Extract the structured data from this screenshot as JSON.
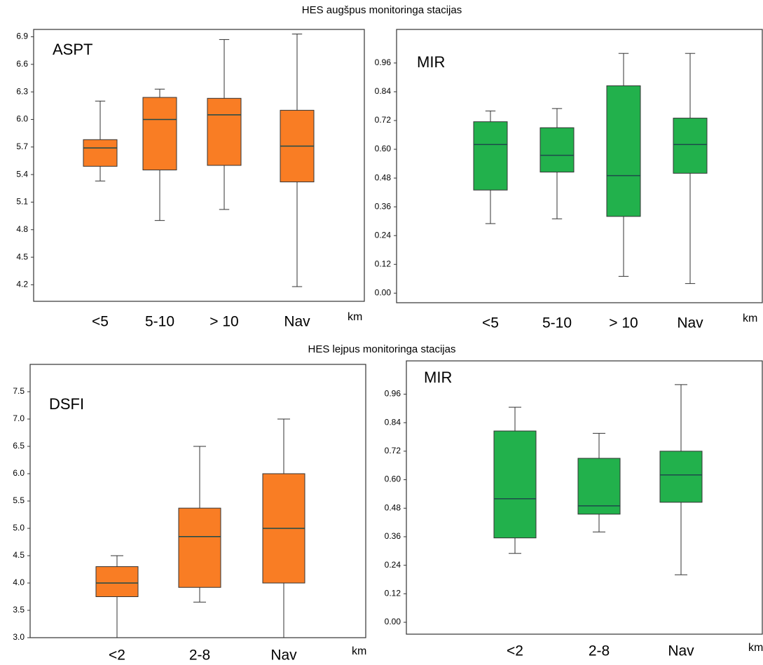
{
  "headings": [
    "HES augšpus monitoringa stacijas",
    "HES lejpus monitoringa stacijas"
  ],
  "chart_data": [
    {
      "type": "box",
      "label": "ASPT",
      "xlabel": "km",
      "color": "#f97d24",
      "categories": [
        "<5",
        "5-10",
        "> 10",
        "Nav"
      ],
      "boxes": [
        {
          "min": 5.33,
          "q1": 5.49,
          "median": 5.69,
          "q3": 5.78,
          "max": 6.2
        },
        {
          "min": 4.9,
          "q1": 5.45,
          "median": 6.0,
          "q3": 6.24,
          "max": 6.33
        },
        {
          "min": 5.02,
          "q1": 5.5,
          "median": 6.05,
          "q3": 6.23,
          "max": 6.87
        },
        {
          "min": 4.18,
          "q1": 5.32,
          "median": 5.71,
          "q3": 6.1,
          "max": 6.93
        }
      ],
      "ylim": [
        4.02,
        6.98
      ],
      "yticks": [
        4.2,
        4.5,
        4.8,
        5.1,
        5.4,
        5.7,
        {
          "value": 6,
          "label": "6.0"
        },
        6.3,
        6.6,
        6.9
      ]
    },
    {
      "type": "box",
      "label": "MIR",
      "xlabel": "km",
      "color": "#22b14c",
      "categories": [
        "<5",
        "5-10",
        "> 10",
        "Nav"
      ],
      "boxes": [
        {
          "min": 0.29,
          "q1": 0.43,
          "median": 0.62,
          "q3": 0.715,
          "max": 0.76
        },
        {
          "min": 0.31,
          "q1": 0.505,
          "median": 0.575,
          "q3": 0.69,
          "max": 0.77
        },
        {
          "min": 0.07,
          "q1": 0.32,
          "median": 0.49,
          "q3": 0.865,
          "max": 1.0
        },
        {
          "min": 0.04,
          "q1": 0.5,
          "median": 0.62,
          "q3": 0.73,
          "max": 1.0
        }
      ],
      "ylim": [
        -0.04,
        1.1
      ],
      "yticks": [
        {
          "value": 0,
          "label": "0.00"
        },
        0.12,
        0.24,
        0.36,
        0.48,
        {
          "value": 0.6,
          "label": "0.60"
        },
        0.72,
        0.84,
        0.96
      ]
    },
    {
      "type": "box",
      "label": "DSFI",
      "xlabel": "km",
      "color": "#f97d24",
      "categories": [
        "<2",
        "2-8",
        "Nav"
      ],
      "boxes": [
        {
          "min": 3.0,
          "q1": 3.75,
          "median": 4.0,
          "q3": 4.3,
          "max": 4.5
        },
        {
          "min": 3.65,
          "q1": 3.92,
          "median": 4.85,
          "q3": 5.37,
          "max": 6.5
        },
        {
          "min": 3.0,
          "q1": 4.0,
          "median": 5.0,
          "q3": 6.0,
          "max": 7.0
        }
      ],
      "ylim": [
        3.0,
        8.0
      ],
      "yticks": [
        {
          "value": 3,
          "label": "3.0"
        },
        3.5,
        {
          "value": 4,
          "label": "4.0"
        },
        4.5,
        {
          "value": 5,
          "label": "5.0"
        },
        5.5,
        {
          "value": 6,
          "label": "6.0"
        },
        6.5,
        {
          "value": 7,
          "label": "7.0"
        },
        7.5
      ]
    },
    {
      "type": "box",
      "label": "MIR",
      "xlabel": "km",
      "color": "#22b14c",
      "categories": [
        "<2",
        "2-8",
        "Nav"
      ],
      "boxes": [
        {
          "min": 0.29,
          "q1": 0.355,
          "median": 0.52,
          "q3": 0.805,
          "max": 0.905
        },
        {
          "min": 0.38,
          "q1": 0.455,
          "median": 0.49,
          "q3": 0.69,
          "max": 0.795
        },
        {
          "min": 0.2,
          "q1": 0.505,
          "median": 0.62,
          "q3": 0.72,
          "max": 1.0
        }
      ],
      "ylim": [
        -0.05,
        1.1
      ],
      "yticks": [
        {
          "value": 0,
          "label": "0.00"
        },
        0.12,
        0.24,
        0.36,
        0.48,
        {
          "value": 0.6,
          "label": "0.60"
        },
        0.72,
        0.84,
        0.96
      ]
    }
  ]
}
